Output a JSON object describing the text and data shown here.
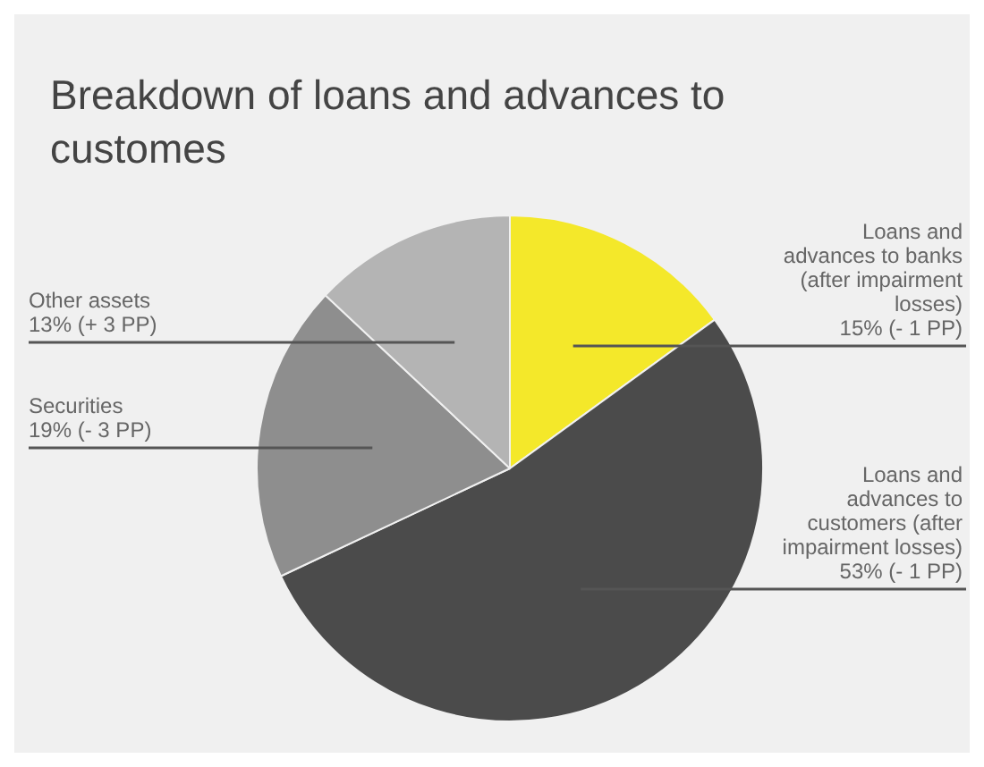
{
  "chart_data": {
    "type": "pie",
    "title": "Breakdown of loans and advances to customes",
    "categories": [
      "Loans and advances to banks (after impairment losses)",
      "Loans and advances to customers (after impairment losses)",
      "Securities",
      "Other assets"
    ],
    "values": [
      15,
      53,
      19,
      13
    ],
    "value_labels": [
      "15% (- 1 PP)",
      "53% (- 1 PP)",
      "19% (- 3 PP)",
      "13% (+ 3 PP)"
    ],
    "colors": [
      "#f4e82a",
      "#4b4b4b",
      "#8e8e8e",
      "#b4b4b4"
    ],
    "legend": false
  }
}
